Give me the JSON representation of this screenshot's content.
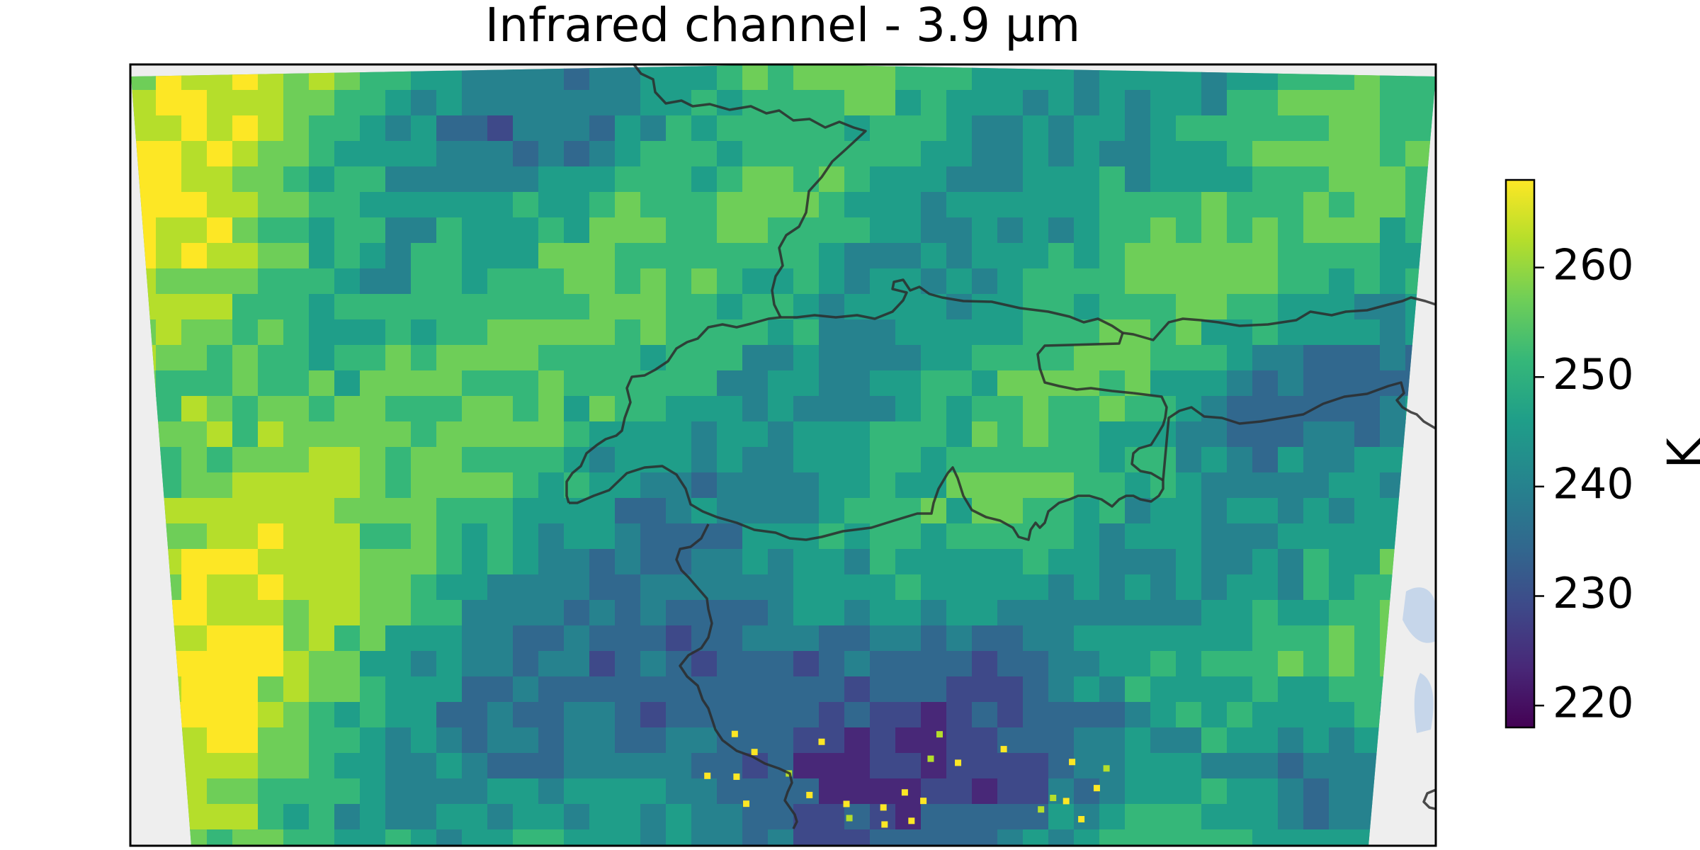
{
  "title": "Infrared channel - 3.9 µm",
  "colormap": {
    "name": "viridis",
    "stops": [
      "#440154",
      "#482878",
      "#3e4989",
      "#31688e",
      "#26828e",
      "#1f9e89",
      "#35b779",
      "#6ece58",
      "#b5de2b",
      "#fde725"
    ]
  },
  "colorbar": {
    "label": "K",
    "vmin": 218,
    "vmax": 268,
    "ticks": [
      {
        "value": 220,
        "label": "220"
      },
      {
        "value": 230,
        "label": "230"
      },
      {
        "value": 240,
        "label": "240"
      },
      {
        "value": 250,
        "label": "250"
      },
      {
        "value": 260,
        "label": "260"
      }
    ]
  },
  "colors": {
    "background_outside_swath": "#eeeeee",
    "water": "#c6d6ea",
    "border_line": "#2b2b2b",
    "frame": "#000000"
  }
}
